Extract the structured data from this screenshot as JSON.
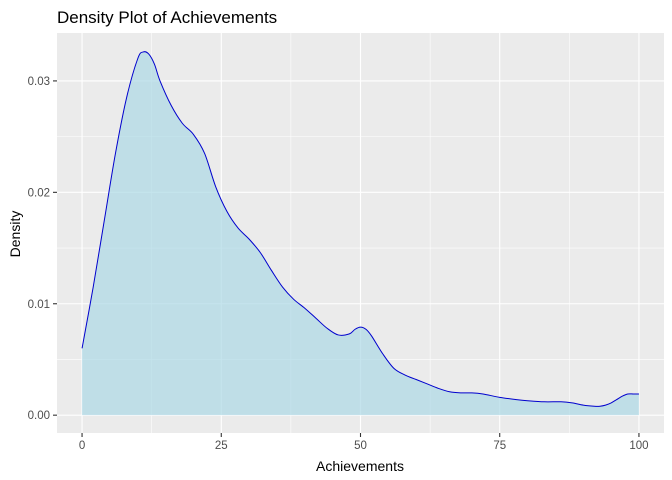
{
  "chart_data": {
    "type": "area",
    "title": "Density Plot of Achievements",
    "xlabel": "Achievements",
    "ylabel": "Density",
    "xlim": [
      -4.5,
      104.5
    ],
    "ylim": [
      -0.0016,
      0.0343
    ],
    "x_ticks": [
      0,
      25,
      50,
      75,
      100
    ],
    "x_tick_labels": [
      "0",
      "25",
      "50",
      "75",
      "100"
    ],
    "y_ticks": [
      0.0,
      0.01,
      0.02,
      0.03
    ],
    "y_tick_labels": [
      "0.00",
      "0.01",
      "0.02",
      "0.03"
    ],
    "grid": true,
    "legend": "none",
    "colors": {
      "panel": "#EBEBEB",
      "grid": "#FFFFFF",
      "fill": "#ADD8E6",
      "line": "#0000CD"
    },
    "series": [
      {
        "x": [
          0,
          2,
          4,
          6,
          8,
          10,
          11,
          12,
          13,
          14,
          16,
          18,
          20,
          22,
          24,
          26,
          28,
          30,
          32,
          34,
          36,
          38,
          40,
          42,
          44,
          46,
          48,
          49,
          50,
          51,
          52,
          54,
          56,
          58,
          60,
          62,
          64,
          66,
          68,
          70,
          72,
          75,
          78,
          80,
          83,
          86,
          88,
          90,
          92,
          93,
          94,
          95,
          96,
          97,
          98,
          99,
          100
        ],
        "y": [
          0.006,
          0.0115,
          0.0175,
          0.0235,
          0.0285,
          0.032,
          0.0326,
          0.0324,
          0.0315,
          0.03,
          0.0278,
          0.0262,
          0.0252,
          0.0235,
          0.0205,
          0.0183,
          0.0168,
          0.0158,
          0.0146,
          0.013,
          0.0115,
          0.0104,
          0.0096,
          0.0087,
          0.0078,
          0.0072,
          0.0073,
          0.0077,
          0.0079,
          0.0077,
          0.0071,
          0.0055,
          0.0042,
          0.0036,
          0.0032,
          0.0028,
          0.0024,
          0.0021,
          0.002,
          0.002,
          0.0019,
          0.0016,
          0.0014,
          0.0013,
          0.0012,
          0.0012,
          0.0011,
          0.0009,
          0.0008,
          0.0008,
          0.0009,
          0.0011,
          0.0014,
          0.0017,
          0.0019,
          0.0019,
          0.0019
        ]
      }
    ]
  }
}
